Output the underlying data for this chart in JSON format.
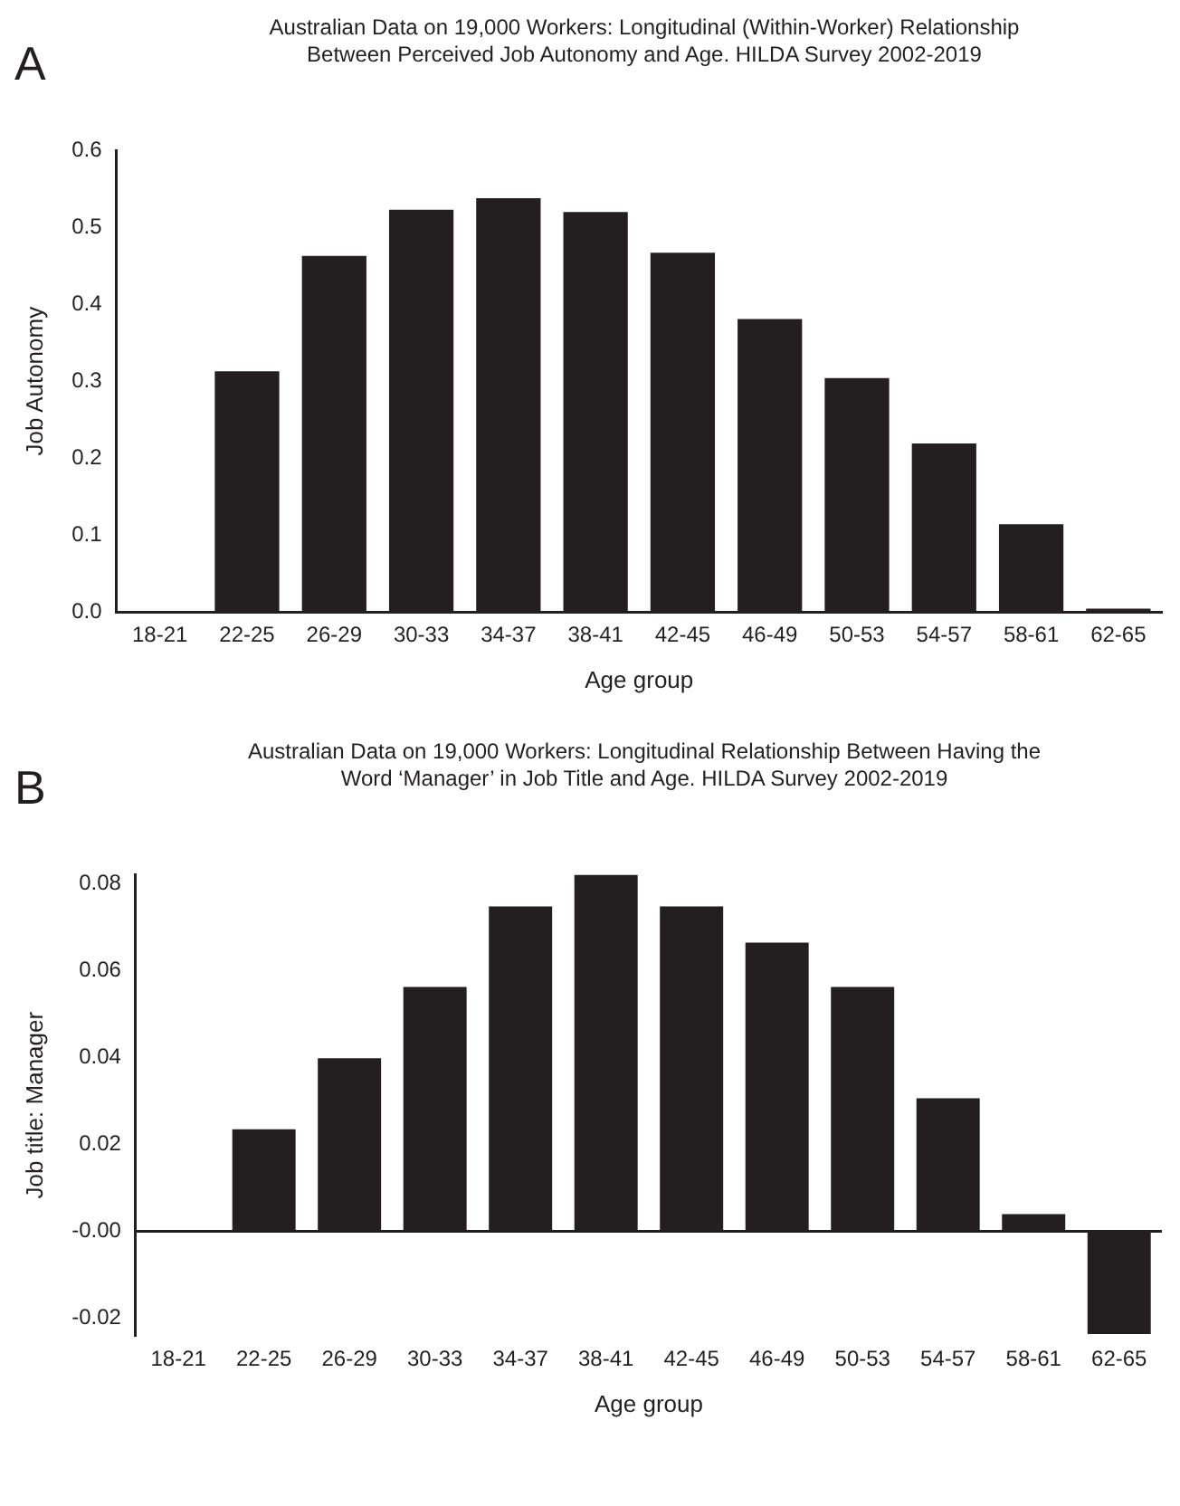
{
  "chart_data": [
    {
      "type": "bar",
      "title": "Australian Data on 19,000 Workers: Longitudinal (Within-Worker) Relationship Between Perceived Job Autonomy and Age. HILDA Survey 2002-2019",
      "annotations": [
        "A"
      ],
      "xlabel": "Age group",
      "ylabel": "Job Autonomy",
      "categories": [
        "18-21",
        "22-25",
        "26-29",
        "30-33",
        "34-37",
        "38-41",
        "42-45",
        "46-49",
        "50-53",
        "54-57",
        "58-61",
        "62-65"
      ],
      "values": [
        0,
        0.313,
        0.463,
        0.523,
        0.538,
        0.52,
        0.467,
        0.381,
        0.304,
        0.219,
        0.114,
        0.004
      ],
      "color": "#231f20",
      "ylim": [
        0,
        0.6
      ],
      "yticks": [
        {
          "value": 0,
          "label": "0.0"
        },
        0.1,
        0.2,
        0.3,
        0.4,
        0.5,
        0.6
      ],
      "grid": false,
      "legend": false
    },
    {
      "type": "bar",
      "title": "Australian Data on 19,000 Workers: Longitudinal Relationship Between Having the Word ‘Manager’ in Job Title and Age. HILDA Survey 2002-2019",
      "annotations": [
        "B"
      ],
      "xlabel": "Age group",
      "ylabel": "Job title: Manager",
      "categories": [
        "18-21",
        "22-25",
        "26-29",
        "30-33",
        "34-37",
        "38-41",
        "42-45",
        "46-49",
        "50-53",
        "54-57",
        "58-61",
        "62-65"
      ],
      "values": [
        0,
        0.0235,
        0.0398,
        0.0562,
        0.0747,
        0.082,
        0.0747,
        0.0664,
        0.0562,
        0.0306,
        0.004,
        -0.0236
      ],
      "color": "#231f20",
      "ylim": [
        -0.024,
        0.082
      ],
      "yticks": [
        -0.02,
        {
          "value": 0,
          "label": "-0.00"
        },
        0.02,
        0.04,
        0.06,
        0.08
      ],
      "ref_lines": [
        {
          "axis": "y",
          "value": 0,
          "color": "#231f20"
        }
      ],
      "grid": false,
      "legend": false
    }
  ]
}
